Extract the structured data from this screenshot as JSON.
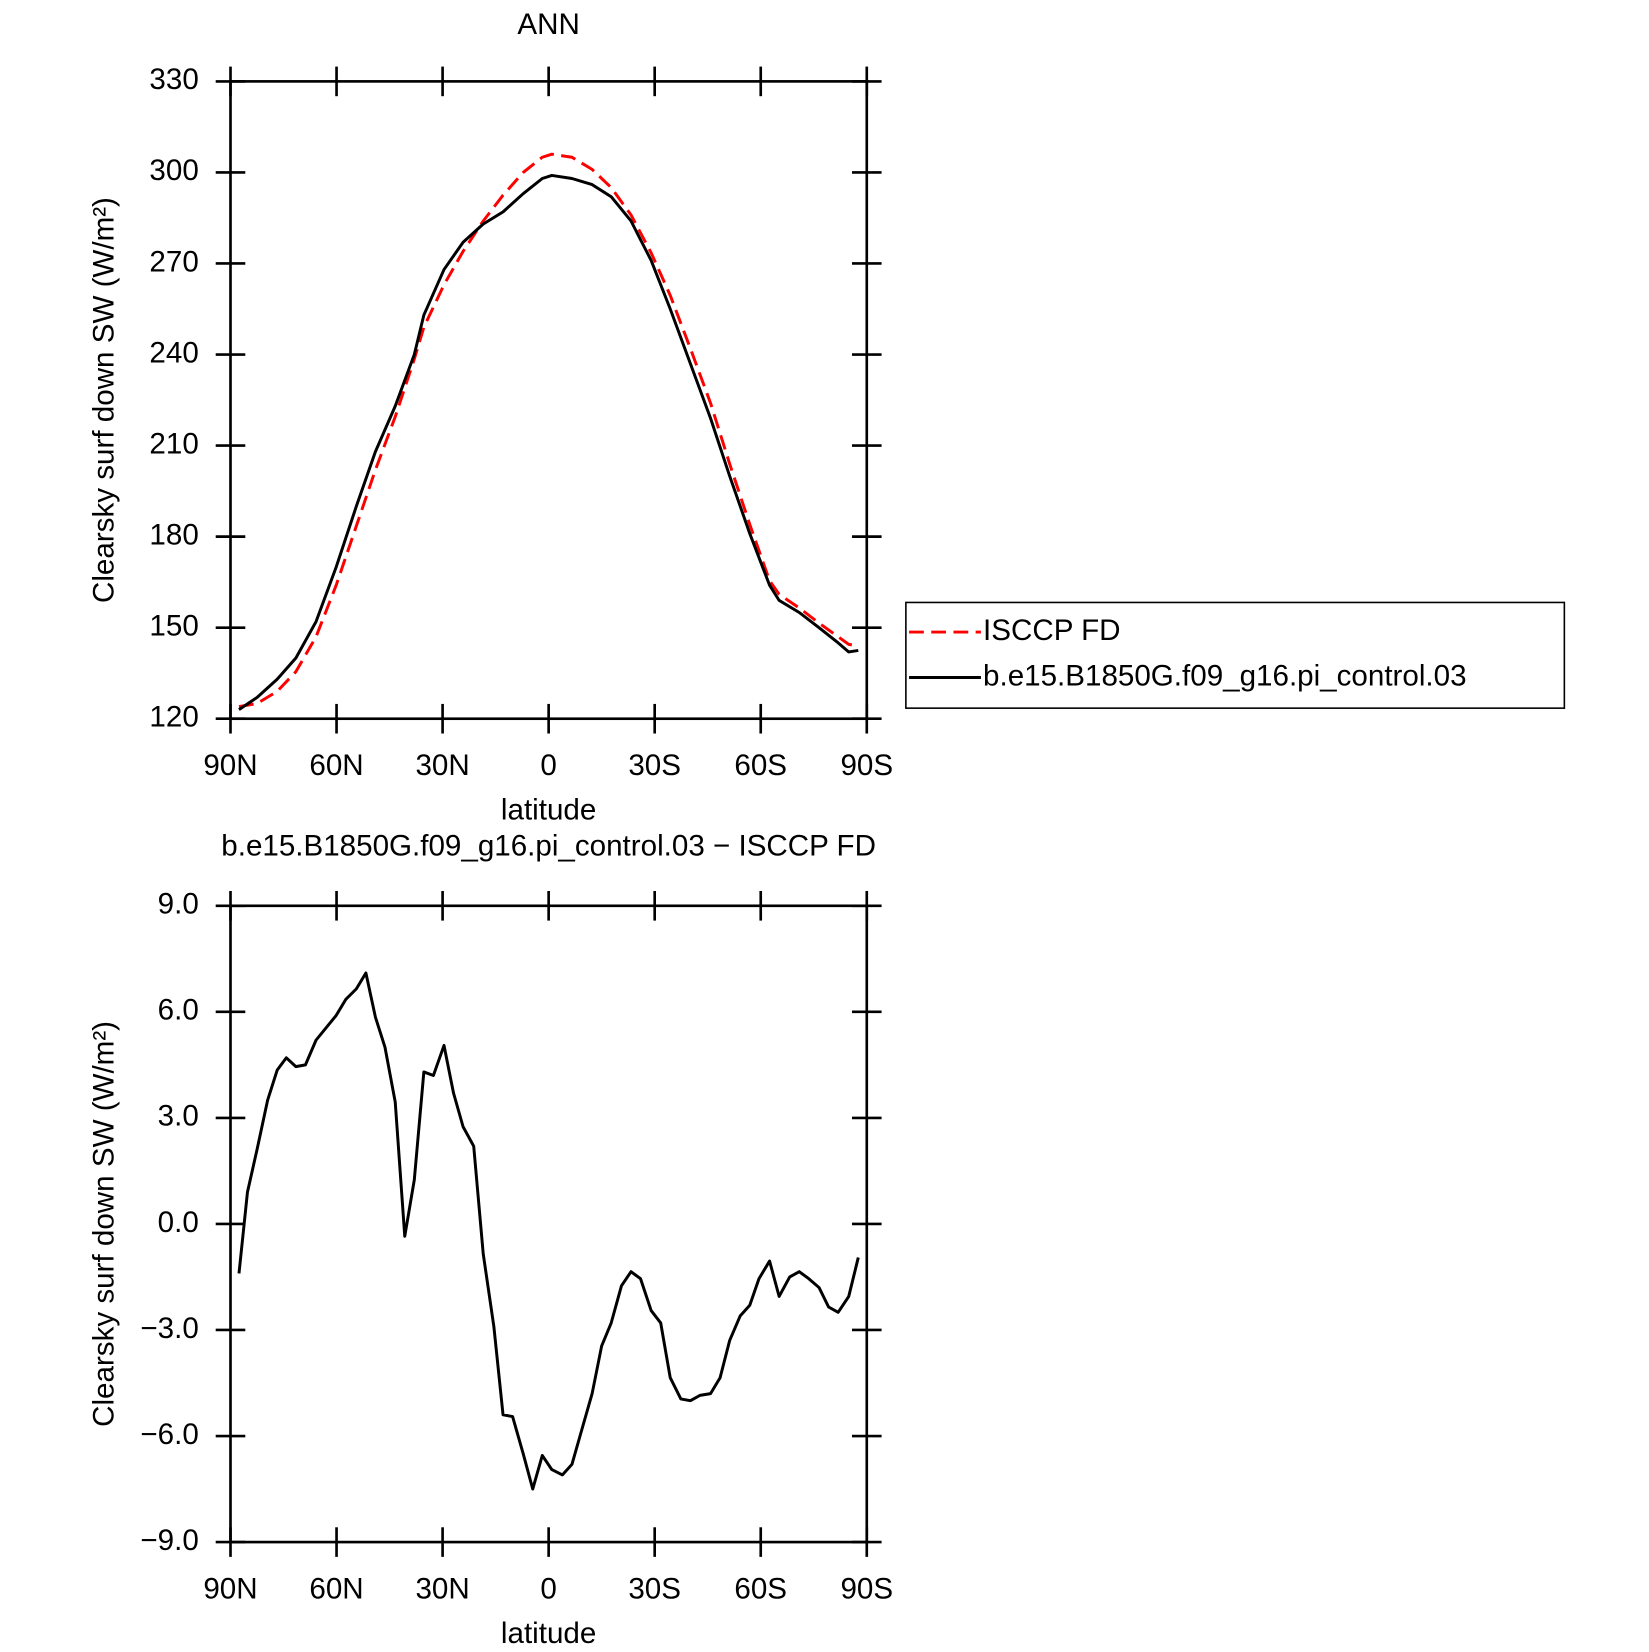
{
  "chart_data": [
    {
      "type": "line",
      "title": "ANN",
      "x_label": "latitude",
      "y_label": "Clearsky surf down SW (W/m²)",
      "x": [
        87.6,
        82.5,
        76.8,
        71.5,
        65.8,
        60.1,
        54.4,
        49.0,
        43.4,
        38.0,
        35.3,
        29.6,
        24.2,
        18.5,
        12.9,
        7.2,
        1.8,
        -0.9,
        -6.6,
        -12.3,
        -17.7,
        -23.3,
        -29.0,
        -34.4,
        -40.1,
        -45.8,
        -51.2,
        -56.9,
        -62.5,
        -65.2,
        -70.9,
        -76.5,
        -81.9,
        -84.9,
        -87.6
      ],
      "series": [
        {
          "name": "ISCCP FD",
          "color": "#ff0000",
          "dashed": true,
          "values": [
            124,
            125,
            129,
            135.5,
            147,
            164,
            183.5,
            202,
            219.5,
            238.5,
            249,
            263,
            274,
            284,
            292.5,
            300,
            305,
            306,
            305,
            301,
            295,
            286,
            273.5,
            259.5,
            242,
            224,
            204,
            184,
            165.5,
            161,
            156.5,
            151.5,
            147,
            144.5,
            144
          ]
        },
        {
          "name": "b.e15.B1850G.f09_g16.pi_control.03",
          "color": "#000000",
          "dashed": false,
          "values": [
            123,
            127,
            133,
            140,
            152,
            170,
            190,
            208,
            223,
            240,
            253,
            268,
            277,
            283,
            287,
            293,
            298,
            299,
            298,
            296,
            292,
            284,
            271,
            255,
            237,
            219,
            200,
            181,
            164,
            159,
            155,
            150,
            145,
            142,
            142.5
          ]
        }
      ],
      "xlim": [
        90,
        -90
      ],
      "xticks": [
        {
          "value": 90,
          "label": "90N"
        },
        {
          "value": 60,
          "label": "60N"
        },
        {
          "value": 30,
          "label": "30N"
        },
        0,
        {
          "value": -30,
          "label": "30S"
        },
        {
          "value": -60,
          "label": "60S"
        },
        {
          "value": -90,
          "label": "90S"
        }
      ],
      "ylim": [
        120,
        330
      ],
      "yticks": [
        120,
        150,
        180,
        210,
        240,
        270,
        300,
        330
      ],
      "legend": "right"
    },
    {
      "type": "line",
      "title": "b.e15.B1850G.f09_g16.pi_control.03 − ISCCP FD",
      "x_label": "latitude",
      "y_label": "Clearsky surf down SW (W/m²)",
      "x": [
        87.6,
        85.2,
        82.5,
        79.5,
        76.8,
        74.2,
        71.5,
        68.8,
        65.8,
        60.1,
        57.4,
        54.4,
        51.7,
        49.0,
        46.3,
        43.4,
        40.7,
        38.0,
        35.3,
        32.6,
        29.6,
        26.9,
        24.2,
        21.2,
        18.5,
        15.5,
        12.9,
        10.2,
        7.2,
        4.5,
        1.8,
        -0.9,
        -3.9,
        -6.6,
        -9.3,
        -12.3,
        -15.0,
        -17.7,
        -20.6,
        -23.3,
        -26.0,
        -29.0,
        -31.7,
        -34.4,
        -37.4,
        -40.1,
        -42.8,
        -45.8,
        -48.5,
        -51.2,
        -54.2,
        -56.9,
        -59.5,
        -62.5,
        -65.2,
        -68.2,
        -70.9,
        -73.6,
        -76.5,
        -79.2,
        -81.9,
        -84.9,
        -87.6
      ],
      "series": [
        {
          "name": "b.e15.B1850G.f09_g16.pi_control.03 − ISCCP FD",
          "color": "#000000",
          "dashed": false,
          "values": [
            -1.4,
            0.9,
            2.1,
            3.5,
            4.35,
            4.7,
            4.45,
            4.5,
            5.2,
            5.9,
            6.35,
            6.65,
            7.1,
            5.85,
            5.0,
            3.45,
            -0.35,
            1.25,
            4.3,
            4.2,
            5.05,
            3.7,
            2.75,
            2.2,
            -0.85,
            -2.9,
            -5.4,
            -5.45,
            -6.5,
            -7.5,
            -6.55,
            -6.95,
            -7.1,
            -6.8,
            -5.85,
            -4.8,
            -3.45,
            -2.8,
            -1.75,
            -1.35,
            -1.55,
            -2.45,
            -2.8,
            -4.35,
            -4.95,
            -5.0,
            -4.85,
            -4.8,
            -4.35,
            -3.3,
            -2.6,
            -2.3,
            -1.55,
            -1.05,
            -2.05,
            -1.5,
            -1.35,
            -1.55,
            -1.8,
            -2.35,
            -2.5,
            -2.05,
            -0.95
          ]
        }
      ],
      "xlim": [
        90,
        -90
      ],
      "xticks": [
        {
          "value": 90,
          "label": "90N"
        },
        {
          "value": 60,
          "label": "60N"
        },
        {
          "value": 30,
          "label": "30N"
        },
        0,
        {
          "value": -30,
          "label": "30S"
        },
        {
          "value": -60,
          "label": "60S"
        },
        {
          "value": -90,
          "label": "90S"
        }
      ],
      "ylim": [
        -9,
        9
      ],
      "yticks": [
        {
          "value": -9,
          "label": "−9.0"
        },
        {
          "value": -6,
          "label": "−6.0"
        },
        {
          "value": -3,
          "label": "−3.0"
        },
        {
          "value": 0,
          "label": "0.0"
        },
        {
          "value": 3,
          "label": "3.0"
        },
        {
          "value": 6,
          "label": "6.0"
        },
        {
          "value": 9,
          "label": "9.0"
        }
      ]
    }
  ]
}
